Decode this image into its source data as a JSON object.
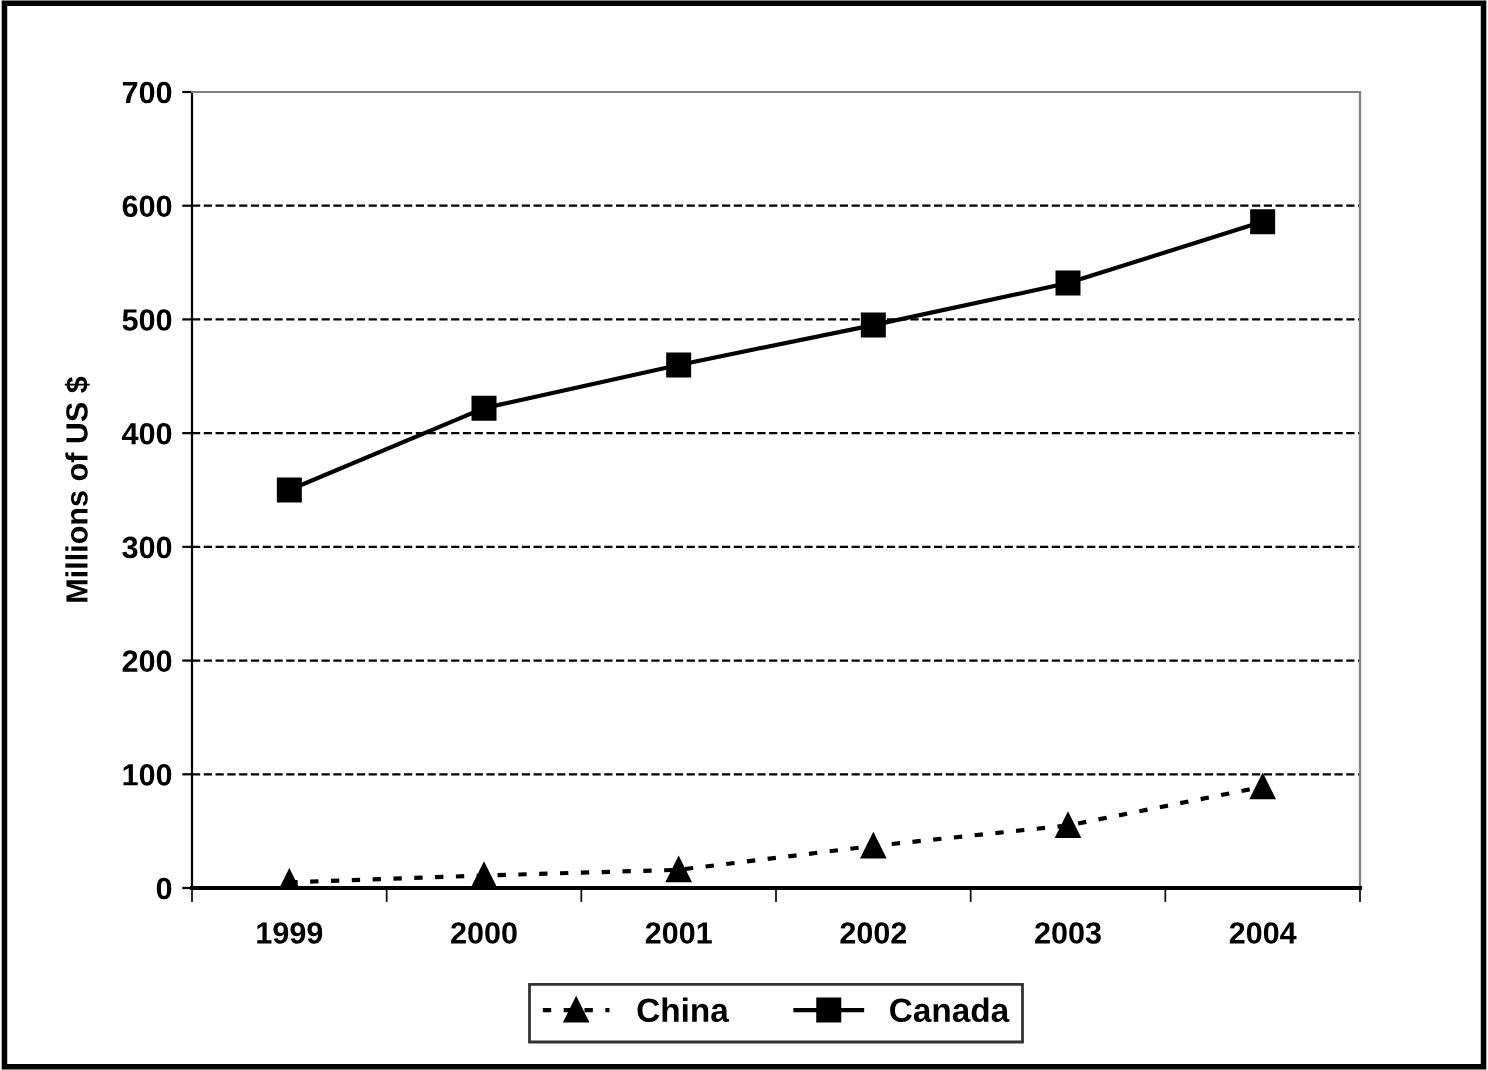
{
  "chart_data": {
    "type": "line",
    "ylabel": "Millions of US $",
    "categories": [
      "1999",
      "2000",
      "2001",
      "2002",
      "2003",
      "2004"
    ],
    "series": [
      {
        "name": "China",
        "color": "#000000",
        "marker": "triangle",
        "line_style": "dotted",
        "values": [
          5,
          11,
          16,
          37,
          55,
          89
        ]
      },
      {
        "name": "Canada",
        "color": "#000000",
        "marker": "square",
        "line_style": "solid",
        "values": [
          350,
          422,
          460,
          495,
          532,
          586
        ]
      }
    ],
    "ylim": [
      0,
      700
    ],
    "yticks": [
      0,
      100,
      200,
      300,
      400,
      500,
      600,
      700
    ],
    "grid": "y",
    "legend": "bottom"
  }
}
